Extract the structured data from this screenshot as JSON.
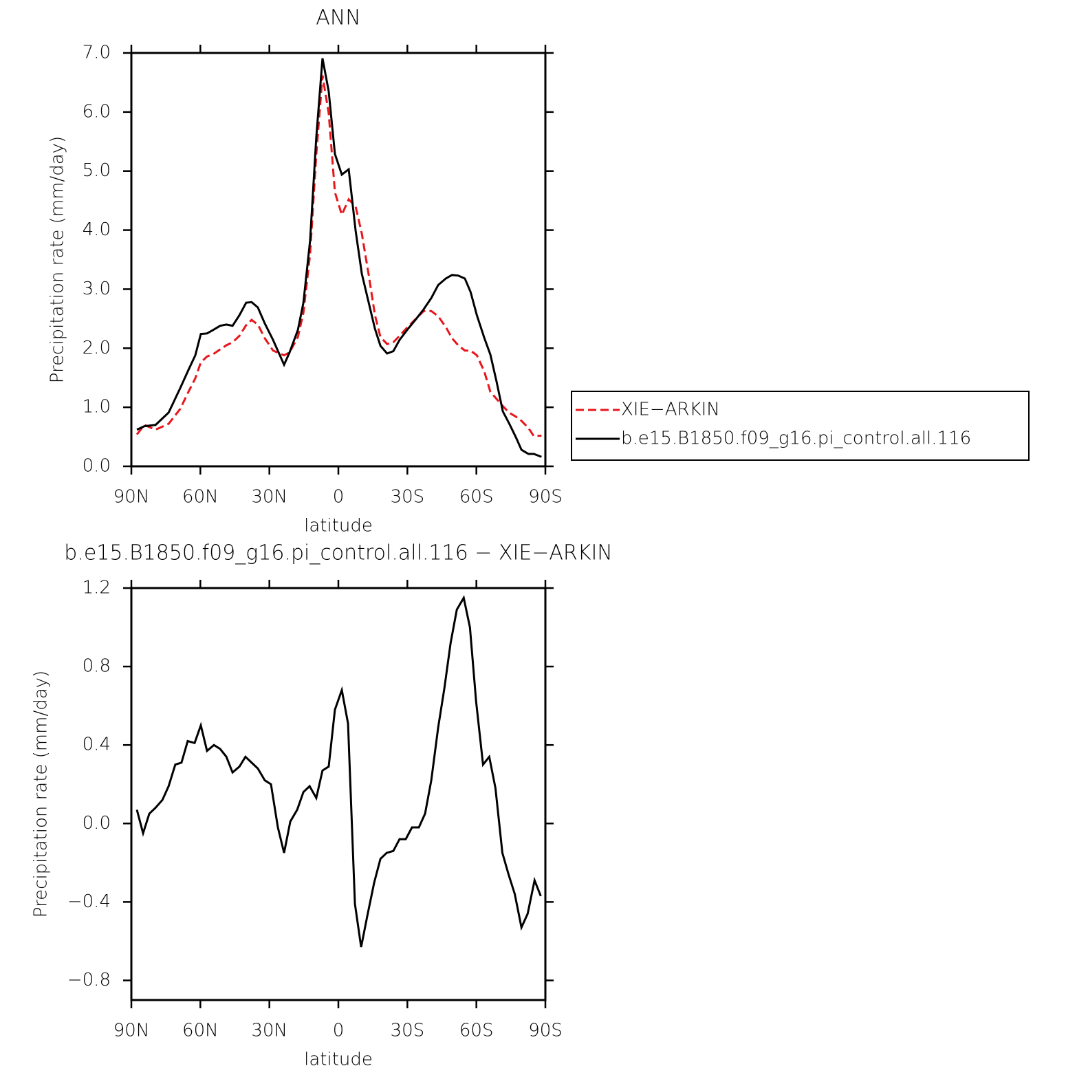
{
  "chart_data": [
    {
      "type": "line",
      "title": "ANN",
      "x_label": "latitude",
      "y_label": "Precipitation rate (mm/day)",
      "x": [
        87.6,
        84.3,
        79.5,
        73.8,
        68.8,
        65.2,
        62.2,
        59.8,
        57.1,
        54.4,
        51.4,
        48.7,
        46.0,
        43.0,
        40.1,
        37.7,
        35.0,
        32.0,
        28.4,
        23.6,
        21.2,
        17.6,
        15.2,
        12.3,
        9.6,
        6.9,
        4.2,
        1.5,
        -1.5,
        -4.5,
        -7.5,
        -10.2,
        -13.2,
        -15.9,
        -18.3,
        -21.2,
        -23.9,
        -26.6,
        -29.9,
        -33.5,
        -37.1,
        -40.4,
        -43.4,
        -46.7,
        -49.4,
        -52.1,
        -55.0,
        -57.5,
        -60.2,
        -63.4,
        -66.1,
        -68.8,
        -71.5,
        -74.2,
        -77.2,
        -79.6,
        -82.6,
        -85.0,
        -88.3
      ],
      "series": [
        {
          "name": "XIE−ARKIN",
          "color": "#e8161b",
          "line_style": "dashed",
          "values": [
            0.54,
            0.7,
            0.62,
            0.72,
            0.97,
            1.26,
            1.49,
            1.76,
            1.86,
            1.9,
            1.98,
            2.05,
            2.1,
            2.21,
            2.39,
            2.48,
            2.4,
            2.17,
            1.96,
            1.88,
            1.93,
            2.19,
            2.6,
            3.59,
            5.28,
            6.62,
            5.98,
            4.64,
            4.26,
            4.52,
            4.4,
            3.94,
            3.24,
            2.56,
            2.19,
            2.07,
            2.1,
            2.21,
            2.35,
            2.49,
            2.63,
            2.63,
            2.54,
            2.36,
            2.17,
            2.05,
            1.96,
            1.96,
            1.88,
            1.61,
            1.26,
            1.14,
            1.02,
            0.91,
            0.84,
            0.77,
            0.65,
            0.51,
            0.52
          ]
        },
        {
          "name": "b.e15.B1850.f09_g16.pi_control.all.116",
          "color": "#000000",
          "line_style": "solid",
          "values": [
            0.62,
            0.68,
            0.7,
            0.91,
            1.32,
            1.63,
            1.88,
            2.24,
            2.25,
            2.31,
            2.38,
            2.4,
            2.38,
            2.56,
            2.77,
            2.78,
            2.69,
            2.42,
            2.14,
            1.72,
            1.93,
            2.31,
            2.77,
            3.82,
            5.57,
            6.91,
            6.35,
            5.29,
            4.94,
            5.03,
            3.99,
            3.26,
            2.77,
            2.33,
            2.04,
            1.91,
            1.95,
            2.14,
            2.31,
            2.48,
            2.66,
            2.85,
            3.07,
            3.18,
            3.24,
            3.23,
            3.18,
            2.95,
            2.56,
            2.18,
            1.89,
            1.43,
            0.93,
            0.73,
            0.49,
            0.28,
            0.21,
            0.21,
            0.16
          ]
        }
      ],
      "xlim": [
        90,
        -90
      ],
      "xticks": [
        {
          "value": 90,
          "label": "90N"
        },
        {
          "value": 60,
          "label": "60N"
        },
        {
          "value": 30,
          "label": "30N"
        },
        0,
        {
          "value": -30,
          "label": "30S"
        },
        {
          "value": -60,
          "label": "60S"
        },
        {
          "value": -90,
          "label": "90S"
        }
      ],
      "ylim": [
        0,
        7
      ],
      "yticks": [
        {
          "value": 0,
          "label": "0.0"
        },
        {
          "value": 1,
          "label": "1.0"
        },
        {
          "value": 2,
          "label": "2.0"
        },
        {
          "value": 3,
          "label": "3.0"
        },
        {
          "value": 4,
          "label": "4.0"
        },
        {
          "value": 5,
          "label": "5.0"
        },
        {
          "value": 6,
          "label": "6.0"
        },
        {
          "value": 7,
          "label": "7.0"
        }
      ],
      "legend": "outside-right"
    },
    {
      "type": "line",
      "title": "b.e15.B1850.f09_g16.pi_control.all.116 − XIE−ARKIN",
      "x_label": "latitude",
      "y_label": "Precipitation rate (mm/day)",
      "x": [
        87.6,
        84.9,
        82.2,
        79.5,
        76.5,
        73.8,
        70.9,
        68.2,
        65.5,
        62.5,
        59.8,
        57.1,
        54.1,
        51.4,
        48.7,
        46.0,
        43.0,
        40.4,
        37.7,
        35.0,
        32.0,
        29.3,
        26.3,
        23.6,
        20.9,
        17.9,
        15.2,
        12.5,
        9.6,
        6.9,
        4.2,
        1.5,
        -1.5,
        -4.2,
        -7.2,
        -9.9,
        -12.6,
        -15.6,
        -18.3,
        -21.0,
        -23.9,
        -26.6,
        -29.3,
        -32.0,
        -35.0,
        -37.7,
        -40.4,
        -43.4,
        -46.1,
        -48.8,
        -51.5,
        -54.5,
        -57.2,
        -59.9,
        -62.9,
        -65.6,
        -68.3,
        -71.3,
        -74.0,
        -76.7,
        -79.6,
        -82.3,
        -85.3,
        -88.0
      ],
      "series": [
        {
          "color": "#000000",
          "line_style": "solid",
          "values": [
            0.07,
            -0.05,
            0.05,
            0.08,
            0.12,
            0.19,
            0.3,
            0.31,
            0.42,
            0.41,
            0.5,
            0.37,
            0.4,
            0.38,
            0.34,
            0.26,
            0.29,
            0.34,
            0.31,
            0.28,
            0.22,
            0.2,
            -0.02,
            -0.15,
            0.01,
            0.07,
            0.16,
            0.19,
            0.13,
            0.27,
            0.29,
            0.58,
            0.68,
            0.51,
            -0.41,
            -0.63,
            -0.47,
            -0.3,
            -0.18,
            -0.15,
            -0.14,
            -0.08,
            -0.08,
            -0.02,
            -0.02,
            0.05,
            0.22,
            0.49,
            0.69,
            0.92,
            1.09,
            1.15,
            1.0,
            0.62,
            0.3,
            0.34,
            0.18,
            -0.15,
            -0.26,
            -0.36,
            -0.53,
            -0.46,
            -0.29,
            -0.37
          ]
        }
      ],
      "xlim": [
        90,
        -90
      ],
      "xticks": [
        {
          "value": 90,
          "label": "90N"
        },
        {
          "value": 60,
          "label": "60N"
        },
        {
          "value": 30,
          "label": "30N"
        },
        0,
        {
          "value": -30,
          "label": "30S"
        },
        {
          "value": -60,
          "label": "60S"
        },
        {
          "value": -90,
          "label": "90S"
        }
      ],
      "ylim": [
        -0.9,
        1.2
      ],
      "yticks": [
        {
          "value": -0.8,
          "label": "−0.8"
        },
        {
          "value": -0.4,
          "label": "−0.4"
        },
        {
          "value": 0,
          "label": "0.0"
        },
        0.4,
        0.8,
        1.2
      ]
    }
  ]
}
